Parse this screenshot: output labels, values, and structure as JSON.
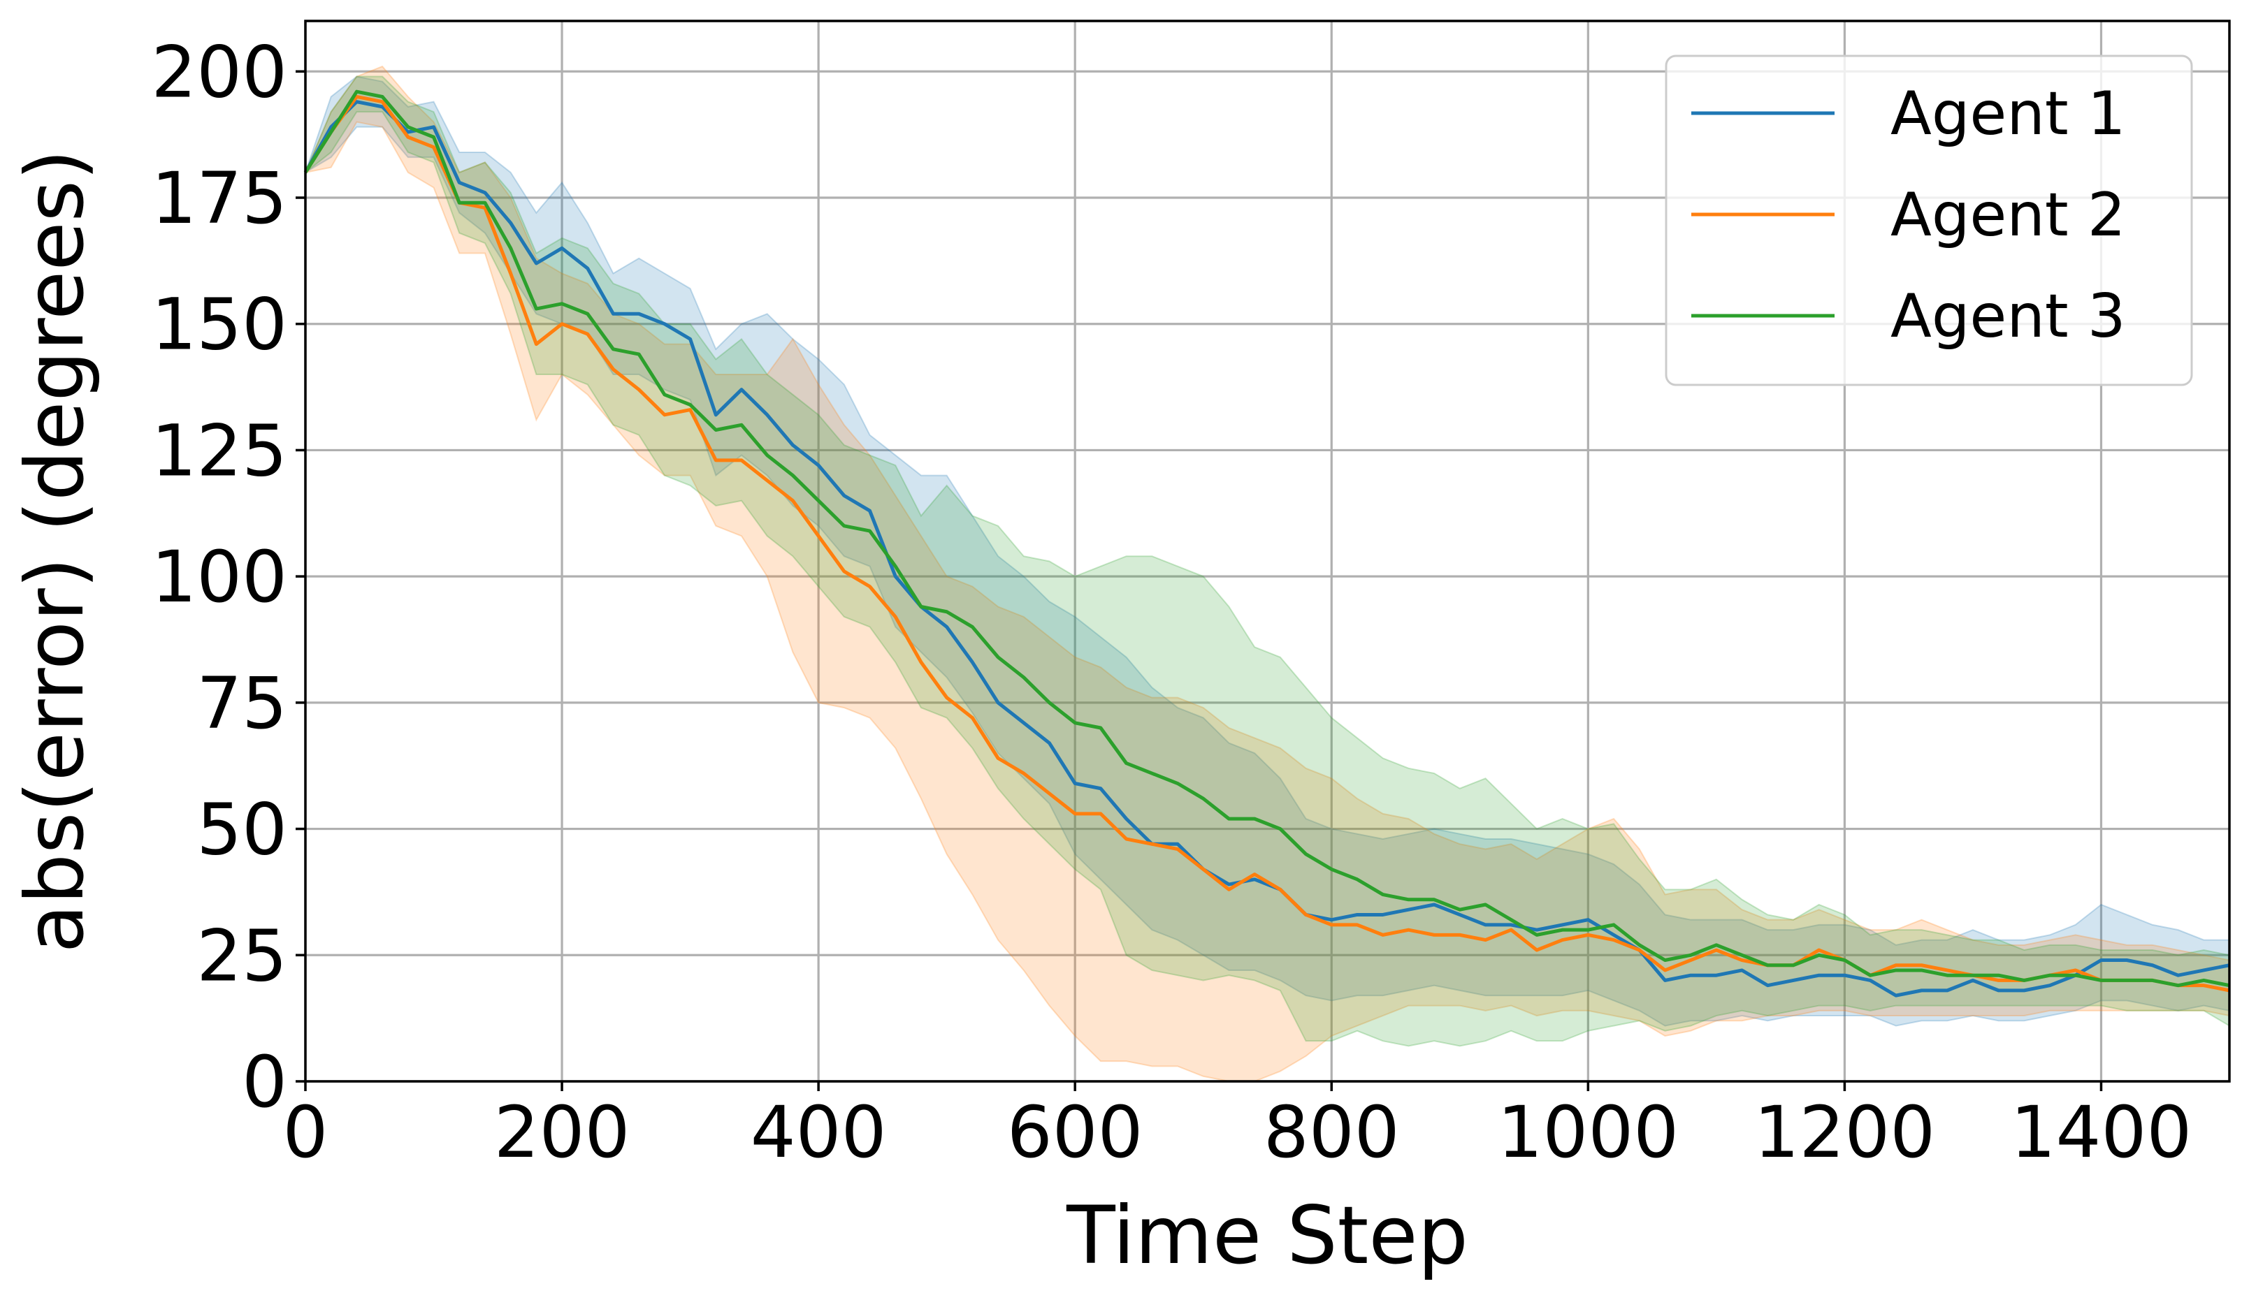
{
  "chart_data": {
    "type": "line",
    "xlabel": "Time Step",
    "ylabel": "abs(error) (degrees)",
    "xlim": [
      0,
      1500
    ],
    "ylim": [
      0,
      210
    ],
    "xticks": [
      0,
      200,
      400,
      600,
      800,
      1000,
      1200,
      1400
    ],
    "yticks": [
      0,
      25,
      50,
      75,
      100,
      125,
      150,
      175,
      200
    ],
    "grid": true,
    "legend_position": "top-right",
    "x": [
      0,
      20,
      40,
      60,
      80,
      100,
      120,
      140,
      160,
      180,
      200,
      220,
      240,
      260,
      280,
      300,
      320,
      340,
      360,
      380,
      400,
      420,
      440,
      460,
      480,
      500,
      520,
      540,
      560,
      580,
      600,
      620,
      640,
      660,
      680,
      700,
      720,
      740,
      760,
      780,
      800,
      820,
      840,
      860,
      880,
      900,
      920,
      940,
      960,
      980,
      1000,
      1020,
      1040,
      1060,
      1080,
      1100,
      1120,
      1140,
      1160,
      1180,
      1200,
      1220,
      1240,
      1260,
      1280,
      1300,
      1320,
      1340,
      1360,
      1380,
      1400,
      1420,
      1440,
      1460,
      1480,
      1500
    ],
    "series": [
      {
        "name": "Agent 1",
        "color": "#1f77b4",
        "values": [
          180,
          189,
          194,
          193,
          188,
          189,
          178,
          176,
          170,
          162,
          165,
          161,
          152,
          152,
          150,
          147,
          132,
          137,
          132,
          126,
          122,
          116,
          113,
          100,
          94,
          90,
          83,
          75,
          71,
          67,
          59,
          58,
          52,
          47,
          47,
          42,
          39,
          40,
          38,
          33,
          32,
          33,
          33,
          34,
          35,
          33,
          31,
          31,
          30,
          31,
          32,
          29,
          26,
          20,
          21,
          21,
          22,
          19,
          20,
          21,
          21,
          20,
          17,
          18,
          18,
          20,
          18,
          18,
          19,
          21,
          24,
          24,
          23,
          21,
          22,
          23
        ],
        "lower": [
          180,
          183,
          189,
          189,
          183,
          183,
          172,
          168,
          160,
          152,
          150,
          148,
          140,
          140,
          137,
          135,
          120,
          124,
          120,
          114,
          110,
          104,
          102,
          90,
          85,
          80,
          73,
          65,
          60,
          55,
          45,
          40,
          35,
          30,
          28,
          25,
          22,
          22,
          20,
          17,
          16,
          17,
          17,
          18,
          19,
          18,
          17,
          17,
          17,
          17,
          18,
          16,
          14,
          11,
          12,
          12,
          13,
          12,
          13,
          13,
          13,
          13,
          11,
          12,
          12,
          13,
          12,
          12,
          13,
          14,
          16,
          16,
          15,
          14,
          15,
          14
        ],
        "upper": [
          180,
          195,
          199,
          198,
          193,
          194,
          184,
          184,
          180,
          172,
          178,
          170,
          160,
          163,
          160,
          157,
          145,
          150,
          152,
          147,
          143,
          138,
          128,
          124,
          120,
          120,
          112,
          104,
          100,
          95,
          92,
          88,
          84,
          78,
          74,
          72,
          67,
          65,
          60,
          52,
          50,
          49,
          48,
          49,
          50,
          49,
          48,
          48,
          47,
          46,
          45,
          43,
          39,
          33,
          32,
          32,
          32,
          30,
          30,
          31,
          31,
          30,
          27,
          28,
          28,
          30,
          28,
          28,
          29,
          31,
          35,
          33,
          31,
          30,
          28,
          28
        ]
      },
      {
        "name": "Agent 2",
        "color": "#ff7f0e",
        "values": [
          180,
          188,
          195,
          194,
          187,
          185,
          174,
          173,
          160,
          146,
          150,
          148,
          141,
          137,
          132,
          133,
          123,
          123,
          119,
          115,
          108,
          101,
          98,
          92,
          83,
          76,
          72,
          64,
          61,
          57,
          53,
          53,
          48,
          47,
          46,
          42,
          38,
          41,
          38,
          33,
          31,
          31,
          29,
          30,
          29,
          29,
          28,
          30,
          26,
          28,
          29,
          28,
          26,
          22,
          24,
          26,
          24,
          23,
          23,
          26,
          24,
          21,
          23,
          23,
          22,
          21,
          20,
          20,
          21,
          22,
          20,
          20,
          20,
          19,
          19,
          18
        ],
        "lower": [
          180,
          181,
          190,
          189,
          180,
          177,
          164,
          164,
          148,
          131,
          140,
          136,
          130,
          124,
          120,
          120,
          110,
          108,
          100,
          85,
          75,
          74,
          72,
          66,
          56,
          45,
          37,
          28,
          22,
          15,
          9,
          4,
          4,
          3,
          3,
          1,
          0,
          0,
          2,
          5,
          9,
          11,
          13,
          15,
          15,
          15,
          14,
          15,
          13,
          14,
          14,
          13,
          12,
          9,
          10,
          12,
          12,
          13,
          13,
          14,
          14,
          13,
          13,
          13,
          13,
          13,
          13,
          13,
          14,
          14,
          14,
          14,
          14,
          14,
          14,
          13
        ],
        "upper": [
          180,
          192,
          199,
          201,
          195,
          190,
          180,
          182,
          175,
          163,
          160,
          158,
          152,
          150,
          146,
          146,
          140,
          140,
          140,
          147,
          138,
          130,
          124,
          116,
          108,
          100,
          98,
          94,
          92,
          88,
          84,
          82,
          78,
          76,
          76,
          74,
          70,
          68,
          66,
          62,
          60,
          56,
          53,
          52,
          49,
          47,
          46,
          47,
          44,
          47,
          50,
          52,
          46,
          37,
          38,
          38,
          34,
          32,
          32,
          34,
          32,
          30,
          30,
          32,
          30,
          28,
          27,
          27,
          28,
          29,
          28,
          27,
          27,
          26,
          25,
          24
        ]
      },
      {
        "name": "Agent 3",
        "color": "#2ca02c",
        "values": [
          180,
          188,
          196,
          195,
          189,
          187,
          174,
          174,
          165,
          153,
          154,
          152,
          145,
          144,
          136,
          134,
          129,
          130,
          124,
          120,
          115,
          110,
          109,
          102,
          94,
          93,
          90,
          84,
          80,
          75,
          71,
          70,
          63,
          61,
          59,
          56,
          52,
          52,
          50,
          45,
          42,
          40,
          37,
          36,
          36,
          34,
          35,
          32,
          29,
          30,
          30,
          31,
          27,
          24,
          25,
          27,
          25,
          23,
          23,
          25,
          24,
          21,
          22,
          22,
          21,
          21,
          21,
          20,
          21,
          21,
          20,
          20,
          20,
          19,
          20,
          19
        ],
        "lower": [
          180,
          184,
          192,
          192,
          184,
          182,
          168,
          166,
          156,
          140,
          140,
          138,
          130,
          128,
          120,
          118,
          114,
          115,
          108,
          104,
          98,
          92,
          90,
          83,
          74,
          72,
          66,
          58,
          52,
          47,
          42,
          38,
          25,
          22,
          21,
          20,
          21,
          20,
          18,
          8,
          8,
          10,
          8,
          7,
          8,
          7,
          8,
          10,
          8,
          8,
          10,
          11,
          12,
          10,
          11,
          13,
          14,
          13,
          14,
          15,
          15,
          14,
          15,
          15,
          15,
          15,
          15,
          15,
          15,
          15,
          15,
          14,
          14,
          14,
          14,
          11
        ],
        "upper": [
          180,
          192,
          199,
          199,
          194,
          192,
          180,
          182,
          176,
          164,
          167,
          165,
          158,
          156,
          150,
          150,
          143,
          147,
          140,
          136,
          132,
          126,
          124,
          122,
          112,
          118,
          112,
          110,
          104,
          103,
          100,
          102,
          104,
          104,
          102,
          100,
          94,
          86,
          84,
          78,
          72,
          68,
          64,
          62,
          61,
          58,
          60,
          55,
          50,
          52,
          50,
          51,
          44,
          38,
          38,
          40,
          36,
          33,
          32,
          35,
          33,
          29,
          30,
          30,
          29,
          28,
          28,
          26,
          27,
          27,
          26,
          26,
          26,
          25,
          26,
          25
        ]
      }
    ]
  }
}
